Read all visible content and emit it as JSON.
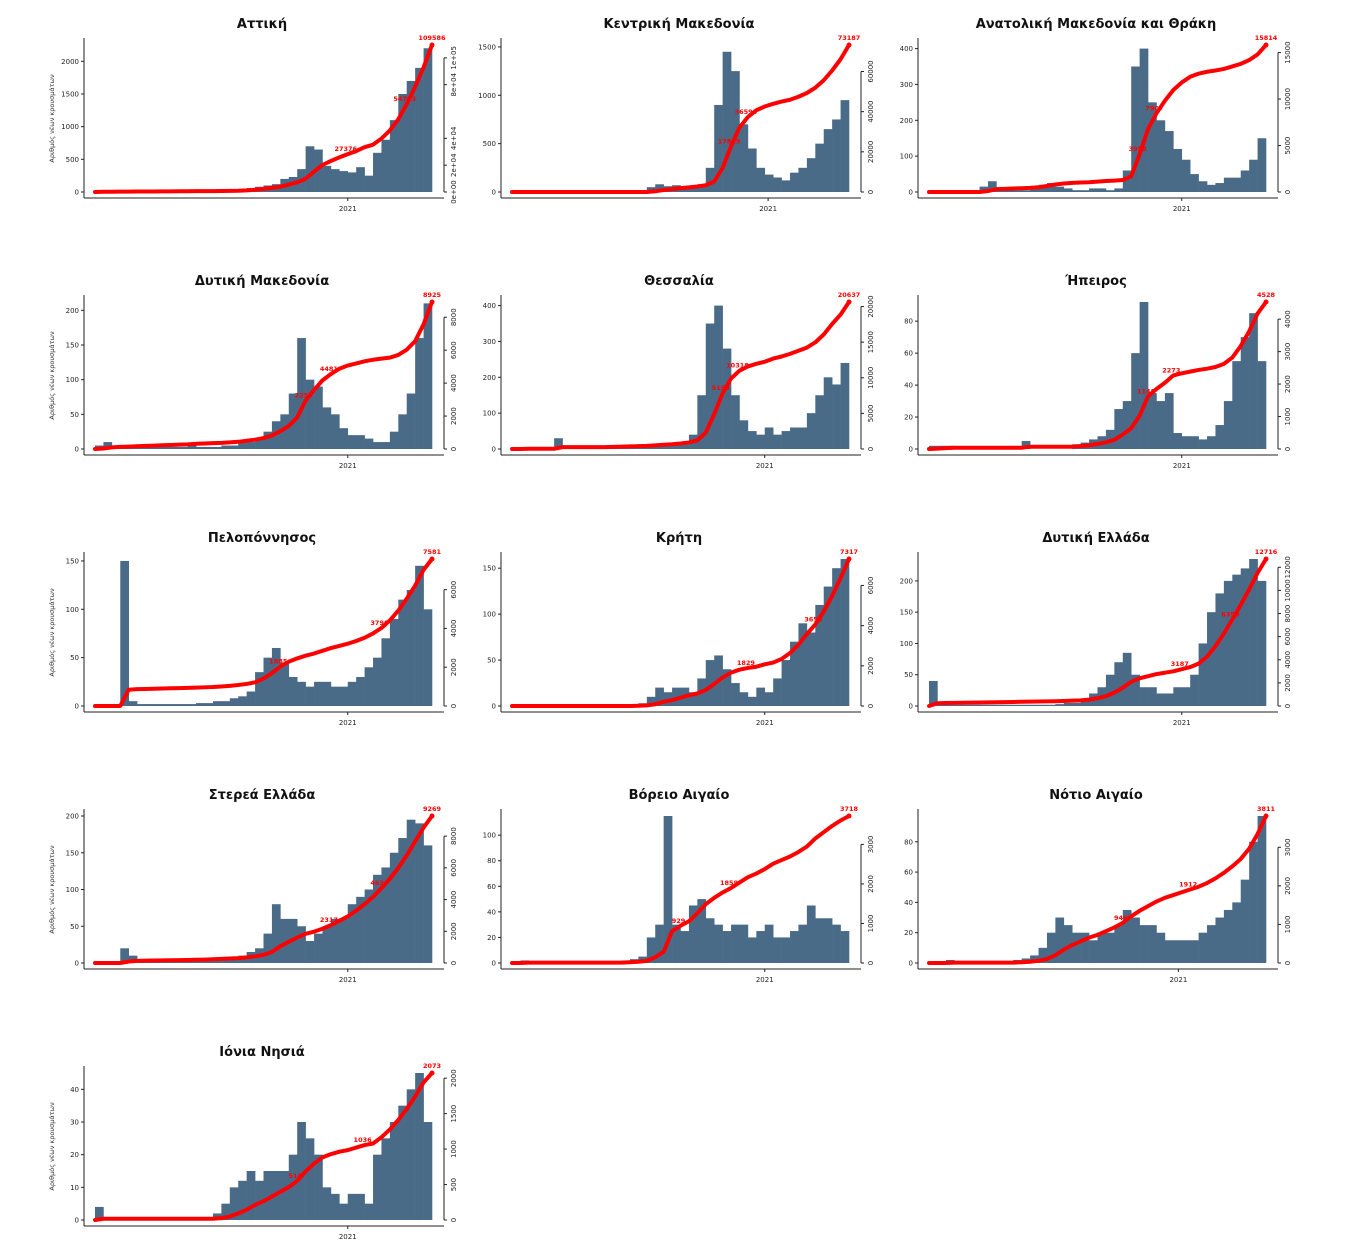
{
  "colors": {
    "bar": "#4a6b88",
    "cumulative_line": "#ff0000",
    "annotation": "#ff0000"
  },
  "chart_data": [
    {
      "type": "bar",
      "title": "Αττική",
      "ylabel": "Αριθμός νέων κρουσμάτων",
      "xtick": "2021",
      "xtick_pos": 0.75,
      "left_ticks": [
        "0",
        "500",
        "1000",
        "1500",
        "2000"
      ],
      "left_tick_values": [
        0,
        500,
        1000,
        1500,
        2000
      ],
      "ylim": [
        0,
        2250
      ],
      "right_ticks": [
        "0e+00",
        "2e+04",
        "4e+04",
        "8e+04",
        "1e+05"
      ],
      "right_tick_values": [
        0,
        20000,
        40000,
        80000,
        100000
      ],
      "y2lim": [
        0,
        109586
      ],
      "total": "109586",
      "q_labels": [
        "27376",
        "54793"
      ],
      "values": [
        20,
        10,
        5,
        5,
        5,
        5,
        5,
        5,
        5,
        5,
        5,
        5,
        5,
        5,
        5,
        10,
        20,
        40,
        60,
        80,
        100,
        120,
        200,
        230,
        350,
        700,
        650,
        400,
        350,
        320,
        300,
        380,
        250,
        600,
        800,
        1100,
        1500,
        1700,
        1900,
        2200
      ]
    },
    {
      "type": "bar",
      "title": "Κεντρική Μακεδονία",
      "ylabel": "",
      "xtick": "2021",
      "xtick_pos": 0.76,
      "left_ticks": [
        "0",
        "500",
        "1000",
        "1500"
      ],
      "left_tick_values": [
        0,
        500,
        1000,
        1500
      ],
      "ylim": [
        0,
        1520
      ],
      "right_ticks": [
        "0",
        "20000",
        "40000",
        "60000"
      ],
      "right_tick_values": [
        0,
        20000,
        40000,
        60000
      ],
      "y2lim": [
        0,
        73187
      ],
      "total": "73187",
      "q_labels": [
        "17849",
        "36593"
      ],
      "values": [
        0,
        0,
        0,
        0,
        0,
        0,
        0,
        0,
        0,
        0,
        0,
        0,
        0,
        0,
        0,
        0,
        50,
        80,
        60,
        70,
        50,
        60,
        80,
        250,
        900,
        1450,
        1250,
        700,
        450,
        250,
        180,
        150,
        120,
        200,
        250,
        350,
        500,
        650,
        750,
        950
      ]
    },
    {
      "type": "bar",
      "title": "Ανατολική Μακεδονία και Θράκη",
      "ylabel": "",
      "xtick": "2021",
      "xtick_pos": 0.75,
      "left_ticks": [
        "0",
        "100",
        "200",
        "300",
        "400"
      ],
      "left_tick_values": [
        0,
        100,
        200,
        300,
        400
      ],
      "ylim": [
        0,
        410
      ],
      "right_ticks": [
        "0",
        "5000",
        "10000",
        "15000"
      ],
      "right_tick_values": [
        0,
        5000,
        10000,
        15000
      ],
      "y2lim": [
        0,
        15814
      ],
      "total": "15814",
      "q_labels": [
        "3953",
        "7907"
      ],
      "values": [
        0,
        0,
        0,
        0,
        0,
        0,
        15,
        30,
        5,
        5,
        5,
        5,
        10,
        20,
        25,
        15,
        10,
        5,
        5,
        10,
        10,
        5,
        10,
        60,
        350,
        400,
        250,
        200,
        170,
        120,
        90,
        50,
        30,
        20,
        25,
        40,
        40,
        60,
        90,
        150
      ]
    },
    {
      "type": "bar",
      "title": "Δυτική Μακεδονία",
      "ylabel": "Αριθμός νέων κρουσμάτων",
      "xtick": "2021",
      "xtick_pos": 0.75,
      "left_ticks": [
        "0",
        "50",
        "100",
        "150",
        "200"
      ],
      "left_tick_values": [
        0,
        50,
        100,
        150,
        200
      ],
      "ylim": [
        0,
        212
      ],
      "right_ticks": [
        "0",
        "2000",
        "4000",
        "6000",
        "8000"
      ],
      "right_tick_values": [
        0,
        2000,
        4000,
        6000,
        8000
      ],
      "y2lim": [
        0,
        8925
      ],
      "total": "8925",
      "q_labels": [
        "2250",
        "4481"
      ],
      "values": [
        5,
        10,
        5,
        3,
        3,
        3,
        3,
        3,
        3,
        3,
        3,
        5,
        3,
        3,
        3,
        5,
        5,
        10,
        10,
        15,
        25,
        40,
        50,
        80,
        160,
        100,
        90,
        60,
        50,
        30,
        20,
        20,
        15,
        10,
        10,
        25,
        50,
        80,
        160,
        210
      ]
    },
    {
      "type": "bar",
      "title": "Θεσσαλία",
      "ylabel": "",
      "xtick": "2021",
      "xtick_pos": 0.75,
      "left_ticks": [
        "0",
        "100",
        "200",
        "300",
        "400"
      ],
      "left_tick_values": [
        0,
        100,
        200,
        300,
        400
      ],
      "ylim": [
        0,
        410
      ],
      "right_ticks": [
        "0",
        "5000",
        "10000",
        "15000",
        "20000"
      ],
      "right_tick_values": [
        0,
        5000,
        10000,
        15000,
        20000
      ],
      "y2lim": [
        0,
        20637
      ],
      "total": "20637",
      "q_labels": [
        "5159",
        "10318"
      ],
      "values": [
        0,
        5,
        0,
        0,
        0,
        30,
        0,
        0,
        0,
        0,
        0,
        5,
        5,
        5,
        5,
        5,
        10,
        10,
        10,
        15,
        20,
        40,
        150,
        350,
        400,
        280,
        150,
        80,
        50,
        40,
        60,
        40,
        50,
        60,
        60,
        100,
        150,
        200,
        180,
        240
      ]
    },
    {
      "type": "bar",
      "title": "Ήπειρος",
      "ylabel": "",
      "xtick": "2021",
      "xtick_pos": 0.75,
      "left_ticks": [
        "0",
        "20",
        "40",
        "60",
        "80"
      ],
      "left_tick_values": [
        0,
        20,
        40,
        60,
        80
      ],
      "ylim": [
        0,
        92
      ],
      "right_ticks": [
        "0",
        "1000",
        "2000",
        "3000",
        "4000"
      ],
      "right_tick_values": [
        0,
        1000,
        2000,
        3000,
        4000
      ],
      "y2lim": [
        0,
        4528
      ],
      "total": "4528",
      "q_labels": [
        "1148",
        "2273"
      ],
      "values": [
        2,
        2,
        2,
        0,
        0,
        0,
        0,
        0,
        0,
        0,
        0,
        5,
        0,
        0,
        0,
        0,
        0,
        3,
        4,
        6,
        8,
        12,
        25,
        30,
        60,
        92,
        35,
        30,
        35,
        10,
        8,
        8,
        6,
        8,
        15,
        30,
        55,
        70,
        85,
        55
      ]
    },
    {
      "type": "bar",
      "title": "Πελοπόννησος",
      "ylabel": "Αριθμός νέων κρουσμάτων",
      "xtick": "2021",
      "xtick_pos": 0.75,
      "left_ticks": [
        "0",
        "50",
        "100",
        "150"
      ],
      "left_tick_values": [
        0,
        50,
        100,
        150
      ],
      "ylim": [
        0,
        152
      ],
      "right_ticks": [
        "0",
        "2000",
        "4000",
        "6000"
      ],
      "right_tick_values": [
        0,
        2000,
        4000,
        6000
      ],
      "y2lim": [
        0,
        7581
      ],
      "total": "7581",
      "q_labels": [
        "1885",
        "3790"
      ],
      "values": [
        0,
        0,
        0,
        150,
        5,
        2,
        2,
        2,
        2,
        2,
        2,
        2,
        3,
        3,
        5,
        5,
        8,
        10,
        15,
        35,
        50,
        60,
        45,
        30,
        25,
        20,
        25,
        25,
        20,
        20,
        25,
        30,
        40,
        50,
        70,
        90,
        110,
        120,
        145,
        100
      ]
    },
    {
      "type": "bar",
      "title": "Κρήτη",
      "ylabel": "",
      "xtick": "2021",
      "xtick_pos": 0.75,
      "left_ticks": [
        "0",
        "50",
        "100",
        "150"
      ],
      "left_tick_values": [
        0,
        50,
        100,
        150
      ],
      "ylim": [
        0,
        160
      ],
      "right_ticks": [
        "0",
        "2000",
        "4000",
        "6000"
      ],
      "right_tick_values": [
        0,
        2000,
        4000,
        6000
      ],
      "y2lim": [
        0,
        7317
      ],
      "total": "7317",
      "q_labels": [
        "1829",
        "3658"
      ],
      "values": [
        0,
        0,
        0,
        0,
        0,
        0,
        0,
        0,
        0,
        0,
        0,
        0,
        0,
        0,
        2,
        3,
        10,
        20,
        15,
        20,
        20,
        15,
        30,
        50,
        55,
        40,
        25,
        15,
        10,
        20,
        15,
        30,
        50,
        70,
        90,
        80,
        110,
        130,
        150,
        160
      ]
    },
    {
      "type": "bar",
      "title": "Δυτική Ελλάδα",
      "ylabel": "",
      "xtick": "2021",
      "xtick_pos": 0.75,
      "left_ticks": [
        "0",
        "50",
        "100",
        "150",
        "200"
      ],
      "left_tick_values": [
        0,
        50,
        100,
        150,
        200
      ],
      "ylim": [
        0,
        235
      ],
      "right_ticks": [
        "0",
        "2000",
        "4000",
        "6000",
        "8000",
        "10000",
        "12000"
      ],
      "right_tick_values": [
        0,
        2000,
        4000,
        6000,
        8000,
        10000,
        12000
      ],
      "y2lim": [
        0,
        12716
      ],
      "total": "12716",
      "q_labels": [
        "3187",
        "6358"
      ],
      "values": [
        40,
        2,
        2,
        2,
        2,
        2,
        2,
        2,
        2,
        2,
        2,
        2,
        2,
        2,
        2,
        3,
        5,
        5,
        10,
        20,
        30,
        50,
        70,
        85,
        50,
        30,
        30,
        20,
        20,
        30,
        30,
        50,
        100,
        150,
        180,
        200,
        210,
        220,
        235,
        200
      ]
    },
    {
      "type": "bar",
      "title": "Στερεά Ελλάδα",
      "ylabel": "Αριθμός νέων κρουσμάτων",
      "xtick": "2021",
      "xtick_pos": 0.75,
      "left_ticks": [
        "0",
        "50",
        "100",
        "150",
        "200"
      ],
      "left_tick_values": [
        0,
        50,
        100,
        150,
        200
      ],
      "ylim": [
        0,
        200
      ],
      "right_ticks": [
        "0",
        "2000",
        "4000",
        "6000",
        "8000"
      ],
      "right_tick_values": [
        0,
        2000,
        4000,
        6000,
        8000
      ],
      "y2lim": [
        0,
        9269
      ],
      "total": "9269",
      "q_labels": [
        "2317",
        "4634"
      ],
      "values": [
        0,
        0,
        0,
        20,
        10,
        2,
        2,
        2,
        2,
        2,
        2,
        2,
        3,
        5,
        5,
        5,
        5,
        10,
        15,
        20,
        40,
        80,
        60,
        60,
        50,
        30,
        40,
        50,
        60,
        60,
        80,
        90,
        100,
        120,
        130,
        150,
        170,
        195,
        190,
        160
      ]
    },
    {
      "type": "bar",
      "title": "Βόρειο Αιγαίο",
      "ylabel": "",
      "xtick": "2021",
      "xtick_pos": 0.75,
      "left_ticks": [
        "0",
        "20",
        "40",
        "60",
        "80",
        "100"
      ],
      "left_tick_values": [
        0,
        20,
        40,
        60,
        80,
        100
      ],
      "ylim": [
        0,
        115
      ],
      "right_ticks": [
        "0",
        "1000",
        "2000",
        "3000"
      ],
      "right_tick_values": [
        0,
        1000,
        2000,
        3000
      ],
      "y2lim": [
        0,
        3718
      ],
      "total": "3718",
      "q_labels": [
        "929",
        "1859"
      ],
      "values": [
        0,
        2,
        0,
        0,
        0,
        0,
        0,
        0,
        0,
        0,
        0,
        0,
        0,
        2,
        3,
        5,
        20,
        30,
        115,
        30,
        25,
        45,
        50,
        35,
        30,
        25,
        30,
        30,
        20,
        25,
        30,
        20,
        20,
        25,
        30,
        45,
        35,
        35,
        30,
        25
      ]
    },
    {
      "type": "bar",
      "title": "Νότιο Αιγαίο",
      "ylabel": "",
      "xtick": "2021",
      "xtick_pos": 0.74,
      "left_ticks": [
        "0",
        "20",
        "40",
        "60",
        "80"
      ],
      "left_tick_values": [
        0,
        20,
        40,
        60,
        80
      ],
      "ylim": [
        0,
        97
      ],
      "right_ticks": [
        "0",
        "1000",
        "2000",
        "3000"
      ],
      "right_tick_values": [
        0,
        1000,
        2000,
        3000
      ],
      "y2lim": [
        0,
        3811
      ],
      "total": "3811",
      "q_labels": [
        "946",
        "1912"
      ],
      "values": [
        0,
        0,
        2,
        0,
        0,
        0,
        0,
        0,
        0,
        0,
        2,
        3,
        5,
        10,
        20,
        30,
        25,
        20,
        20,
        15,
        20,
        20,
        25,
        35,
        30,
        25,
        25,
        20,
        15,
        15,
        15,
        15,
        20,
        25,
        30,
        35,
        40,
        55,
        80,
        97
      ]
    },
    {
      "type": "bar",
      "title": "Ιόνια Νησιά",
      "ylabel": "Αριθμός νέων κρουσμάτων",
      "xtick": "2021",
      "xtick_pos": 0.75,
      "left_ticks": [
        "0",
        "10",
        "20",
        "30",
        "40"
      ],
      "left_tick_values": [
        0,
        10,
        20,
        30,
        40
      ],
      "ylim": [
        0,
        45
      ],
      "right_ticks": [
        "0",
        "500",
        "1000",
        "1500",
        "2000"
      ],
      "right_tick_values": [
        0,
        500,
        1000,
        1500,
        2000
      ],
      "y2lim": [
        0,
        2073
      ],
      "total": "2073",
      "q_labels": [
        "518",
        "1036"
      ],
      "values": [
        4,
        0,
        0,
        0,
        0,
        0,
        0,
        0,
        0,
        0,
        0,
        0,
        0,
        0,
        2,
        5,
        10,
        12,
        15,
        12,
        15,
        15,
        15,
        20,
        30,
        25,
        20,
        10,
        8,
        5,
        8,
        8,
        5,
        20,
        25,
        30,
        35,
        40,
        45,
        30
      ]
    }
  ]
}
